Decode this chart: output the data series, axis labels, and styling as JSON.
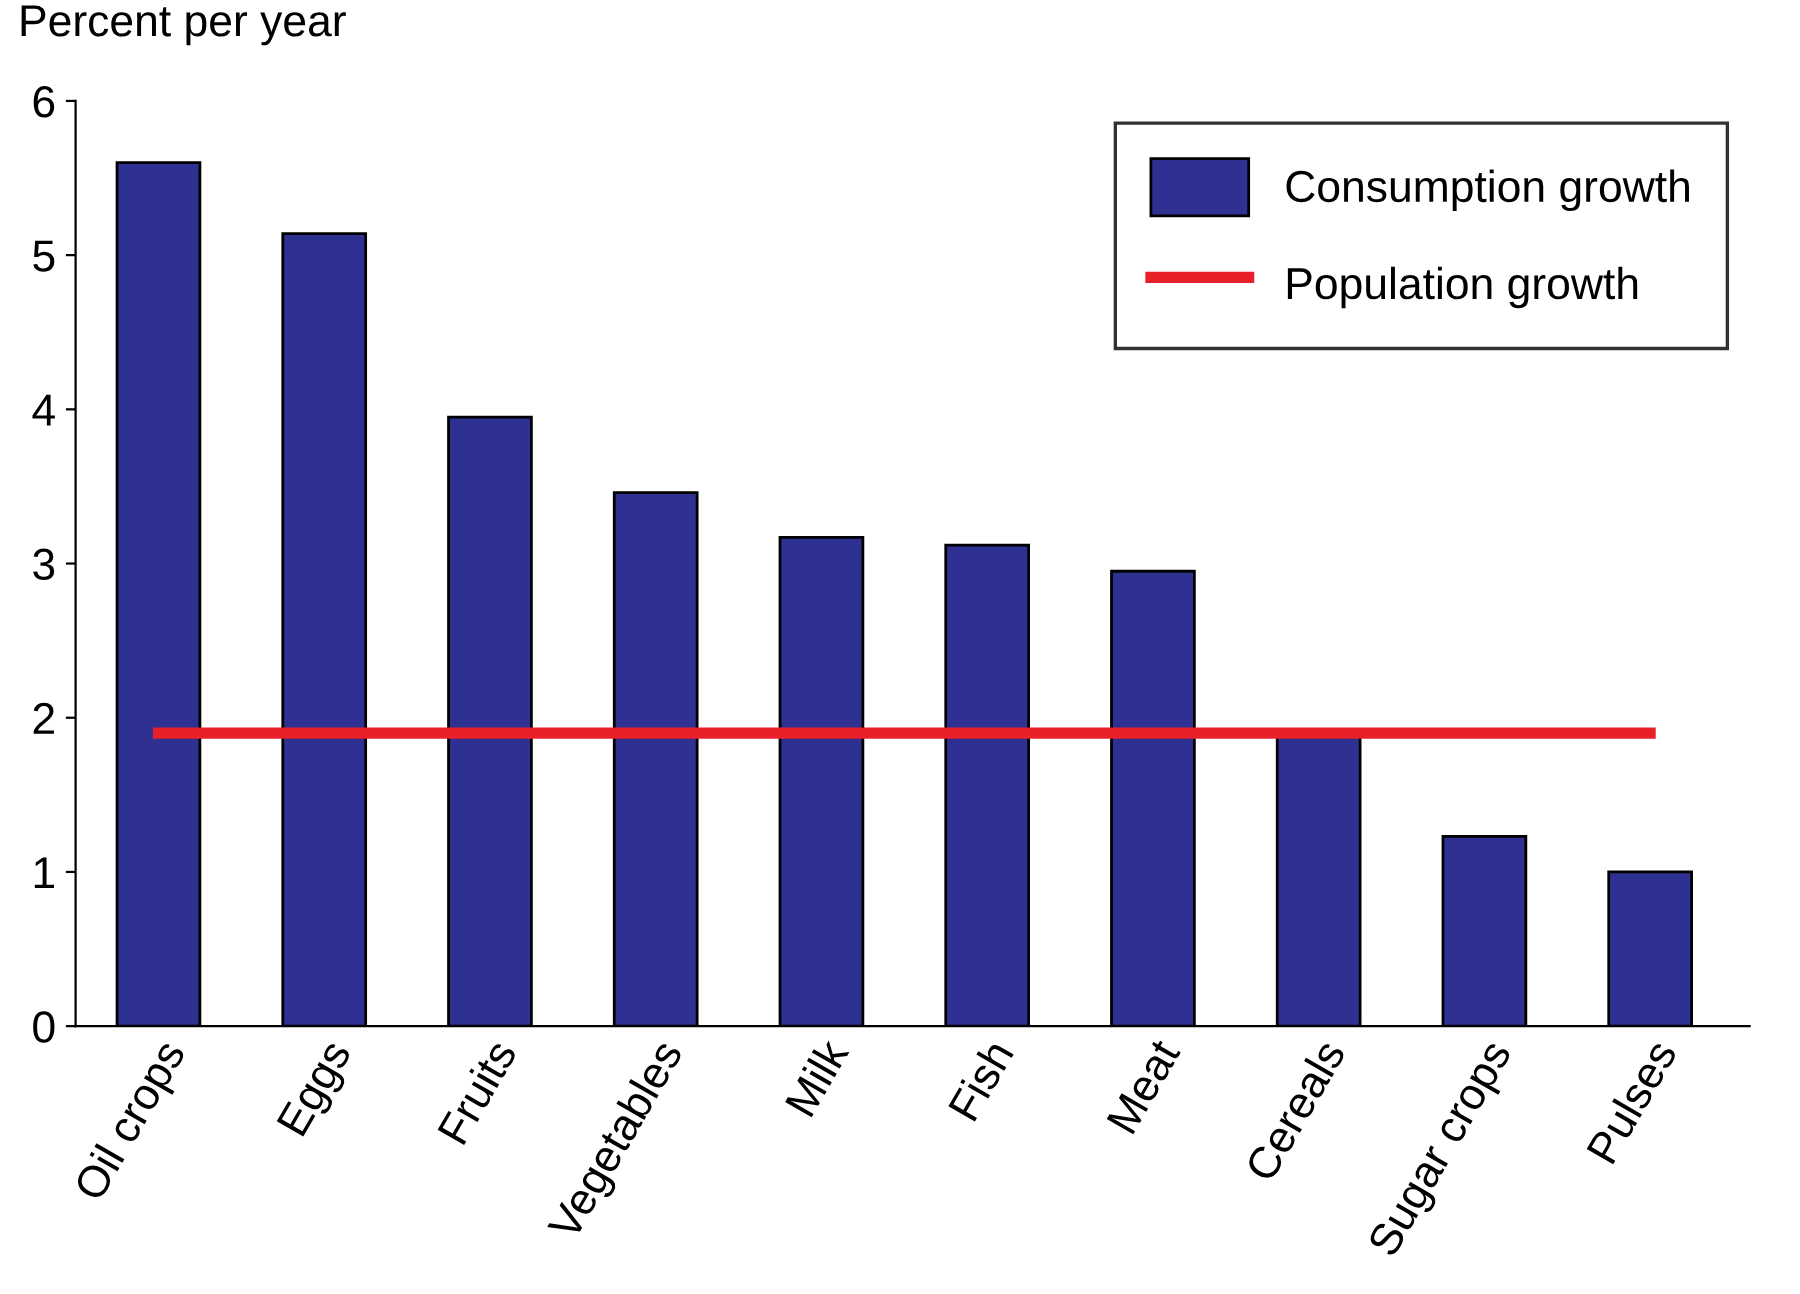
{
  "chart_data": {
    "type": "bar",
    "ylabel": "Percent per year",
    "categories": [
      "Oil crops",
      "Eggs",
      "Fruits",
      "Vegetables",
      "Milk",
      "Fish",
      "Meat",
      "Cereals",
      "Sugar crops",
      "Pulses"
    ],
    "series": [
      {
        "name": "Consumption growth",
        "color": "#2e3192",
        "values": [
          5.6,
          5.14,
          3.95,
          3.46,
          3.17,
          3.12,
          2.95,
          1.9,
          1.23,
          1.0
        ]
      },
      {
        "name": "Population growth",
        "type": "line",
        "color": "#e8202a",
        "values": [
          1.9,
          1.9,
          1.9,
          1.9,
          1.9,
          1.9,
          1.9,
          1.9,
          1.9,
          1.9
        ]
      }
    ],
    "ylim": [
      0,
      6
    ],
    "yticks": [
      0,
      1,
      2,
      3,
      4,
      5,
      6
    ],
    "grid": false,
    "legend": "top right"
  }
}
